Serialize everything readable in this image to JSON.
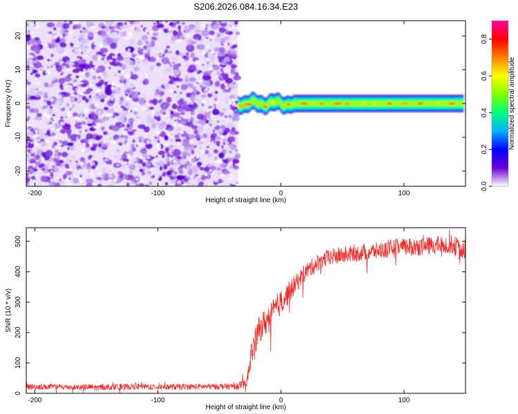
{
  "figure_title": "S206.2026.084.16.34.E23",
  "chart_data": [
    {
      "type": "heatmap",
      "title": "S206.2026.084.16.34.E23",
      "xlabel": "Height of straight line (km)",
      "ylabel": "Frequency (Hz)",
      "xlim": [
        -207,
        150
      ],
      "ylim": [
        -24.5,
        24.5
      ],
      "xticks": [
        -200,
        -100,
        0,
        100
      ],
      "xtick_labels": [
        "-200",
        "-100",
        "0",
        "100"
      ],
      "yticks": [
        -20,
        -10,
        0,
        10,
        20
      ],
      "ytick_labels": [
        "-20",
        "-10",
        "0",
        "10",
        "20"
      ],
      "noise_region_x": [
        -207,
        -35
      ],
      "signal_band": {
        "x_start": -35,
        "x_end": 150,
        "center_hz": 0,
        "half_width_hz": 1.5
      },
      "colorbar": {
        "label": "Normalized spectral amplitude",
        "range": [
          0,
          0.9
        ],
        "ticks": [
          0.0,
          0.2,
          0.4,
          0.6,
          0.8
        ],
        "tick_labels": [
          "0.0",
          "0.2",
          "0.4",
          "0.6",
          "0.8"
        ],
        "colormap": [
          "#ffffff",
          "#6a00d5",
          "#0000ff",
          "#00b0ff",
          "#00ff80",
          "#80ff00",
          "#ffff00",
          "#ff8000",
          "#ff0000",
          "#ff00a0"
        ]
      }
    },
    {
      "type": "line",
      "xlabel": "Height of straight line (km)",
      "ylabel": "SNR (10 * v/v)",
      "xlim": [
        -207,
        150
      ],
      "ylim": [
        0,
        545
      ],
      "xticks": [
        -200,
        -100,
        0,
        100
      ],
      "xtick_labels": [
        "-200",
        "-100",
        "0",
        "100"
      ],
      "yticks": [
        0,
        100,
        200,
        300,
        400,
        500
      ],
      "ytick_labels": [
        "0",
        "100",
        "200",
        "300",
        "400",
        "500"
      ],
      "series": [
        {
          "name": "SNR",
          "color": "#e8312f",
          "x": [
            -207,
            -180,
            -150,
            -120,
            -90,
            -60,
            -40,
            -28,
            -24,
            -21,
            -18,
            -15,
            -12,
            -8,
            -4,
            0,
            4,
            8,
            12,
            16,
            20,
            25,
            30,
            35,
            40,
            50,
            60,
            70,
            80,
            90,
            100,
            110,
            120,
            130,
            140,
            146,
            150
          ],
          "values": [
            22,
            21,
            20,
            22,
            21,
            22,
            23,
            30,
            130,
            170,
            205,
            225,
            235,
            255,
            280,
            300,
            320,
            340,
            360,
            380,
            400,
            415,
            430,
            440,
            448,
            455,
            460,
            465,
            470,
            478,
            480,
            482,
            485,
            488,
            490,
            470,
            480
          ],
          "noise_amplitude": [
            10,
            10,
            10,
            10,
            10,
            10,
            10,
            15,
            40,
            45,
            45,
            45,
            45,
            45,
            45,
            40,
            40,
            35,
            30,
            30,
            28,
            28,
            28,
            28,
            28,
            28,
            28,
            28,
            28,
            30,
            30,
            30,
            30,
            30,
            32,
            35,
            35
          ]
        }
      ]
    }
  ]
}
